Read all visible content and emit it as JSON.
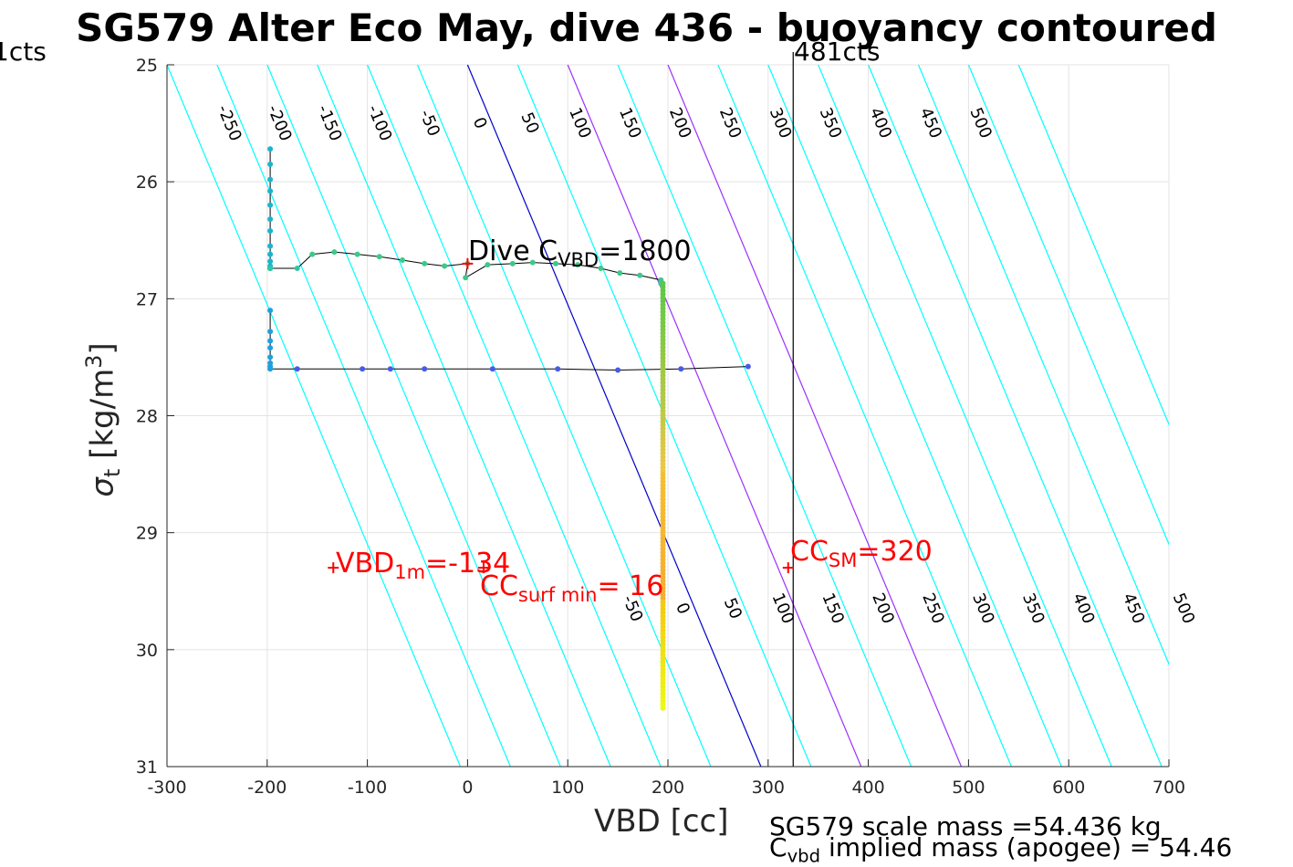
{
  "title": "SG579 Alter Eco May, dive 436 - buoyancy contoured",
  "left_cts_label": "1cts",
  "right_cts_label": "481cts",
  "xlabel": "VBD [cc]",
  "ylabel_symbol": "σ",
  "ylabel_sub": "t",
  "ylabel_units": " [kg/m",
  "ylabel_sup": "3",
  "ylabel_close": "]",
  "dive_c": {
    "main": "Dive C",
    "sub": "VBD",
    "value": "=1800"
  },
  "vbd1m": {
    "main": "VBD",
    "sub": "1m",
    "value": "=-134"
  },
  "ccsurf": {
    "main": "CC",
    "sub": "surf min",
    "value": "= 16"
  },
  "ccsm": {
    "main": "CC",
    "sub": "SM",
    "value": "=320"
  },
  "footer_line1": "SG579 scale mass =54.436 kg",
  "footer_line2_main": "C",
  "footer_line2_sub": "vbd",
  "footer_line2_rest": " implied mass (apogee) = 54.46",
  "colors": {
    "contour": "#00ffff",
    "zero": "#0000cd",
    "key": "#9b30ff",
    "trace": "#000000",
    "marker": "#ff0000",
    "grid": "#e3e3e3"
  },
  "chart_data": {
    "type": "scatter",
    "xlabel": "VBD [cc]",
    "ylabel": "σt [kg/m3]",
    "xlim": [
      -300,
      700
    ],
    "ylim": [
      25,
      31
    ],
    "y_reversed": true,
    "grid": true,
    "xticks": [
      -300,
      -200,
      -100,
      0,
      100,
      200,
      300,
      400,
      500,
      600,
      700
    ],
    "yticks": [
      25,
      26,
      27,
      28,
      29,
      30,
      31
    ],
    "contour_slope_cc_per_kgm3": 48.8,
    "contours": [
      -300,
      -250,
      -200,
      -150,
      -100,
      -50,
      0,
      50,
      100,
      150,
      200,
      250,
      300,
      350,
      400,
      450,
      500,
      550
    ],
    "contours_special_zero": [
      0
    ],
    "contours_special_key": [
      100,
      200
    ],
    "contour_labels_top": [
      -250,
      -200,
      -150,
      -100,
      -50,
      0,
      50,
      100,
      150,
      200,
      250,
      300,
      350,
      400,
      450,
      500
    ],
    "contour_labels_bottom": [
      -50,
      0,
      50,
      100,
      150,
      200,
      250,
      300,
      350,
      400,
      450,
      500
    ],
    "vertical_line_x": 325,
    "dive_trace": {
      "x": [
        -197,
        -197,
        -197,
        -197,
        -197,
        -197,
        -197,
        -197,
        -197,
        -197,
        -197,
        -197,
        -197,
        -197,
        -197,
        -197,
        -197,
        -170,
        -155,
        -133,
        -110,
        -88,
        -65,
        -43,
        -23,
        0,
        -2,
        20,
        45,
        65,
        88,
        110,
        133,
        152,
        172,
        193,
        193
      ],
      "y": [
        25.72,
        25.85,
        25.98,
        26.08,
        26.2,
        26.32,
        26.42,
        26.55,
        26.62,
        26.68,
        26.72,
        26.74,
        26.74,
        26.74,
        26.74,
        26.74,
        26.74,
        26.74,
        26.62,
        26.6,
        26.62,
        26.64,
        26.67,
        26.7,
        26.72,
        26.7,
        26.82,
        26.71,
        26.7,
        26.69,
        26.7,
        26.71,
        26.74,
        26.78,
        26.8,
        26.84,
        26.87
      ]
    },
    "descent_column": {
      "x": 195,
      "y_from": 26.87,
      "y_to": 30.5
    },
    "climb_trace": {
      "x": [
        -197,
        -197,
        -197,
        -197,
        -197,
        -197,
        -197,
        -197,
        -170,
        -105,
        -77,
        -43,
        25,
        90,
        150,
        213,
        280
      ],
      "y": [
        27.1,
        27.28,
        27.36,
        27.42,
        27.5,
        27.55,
        27.58,
        27.6,
        27.6,
        27.6,
        27.6,
        27.6,
        27.6,
        27.6,
        27.61,
        27.6,
        27.58
      ]
    },
    "markers": [
      {
        "x": 0,
        "y": 26.7
      },
      {
        "x": -134,
        "y": 29.3
      },
      {
        "x": 16,
        "y": 29.3
      },
      {
        "x": 320,
        "y": 29.3
      }
    ]
  }
}
